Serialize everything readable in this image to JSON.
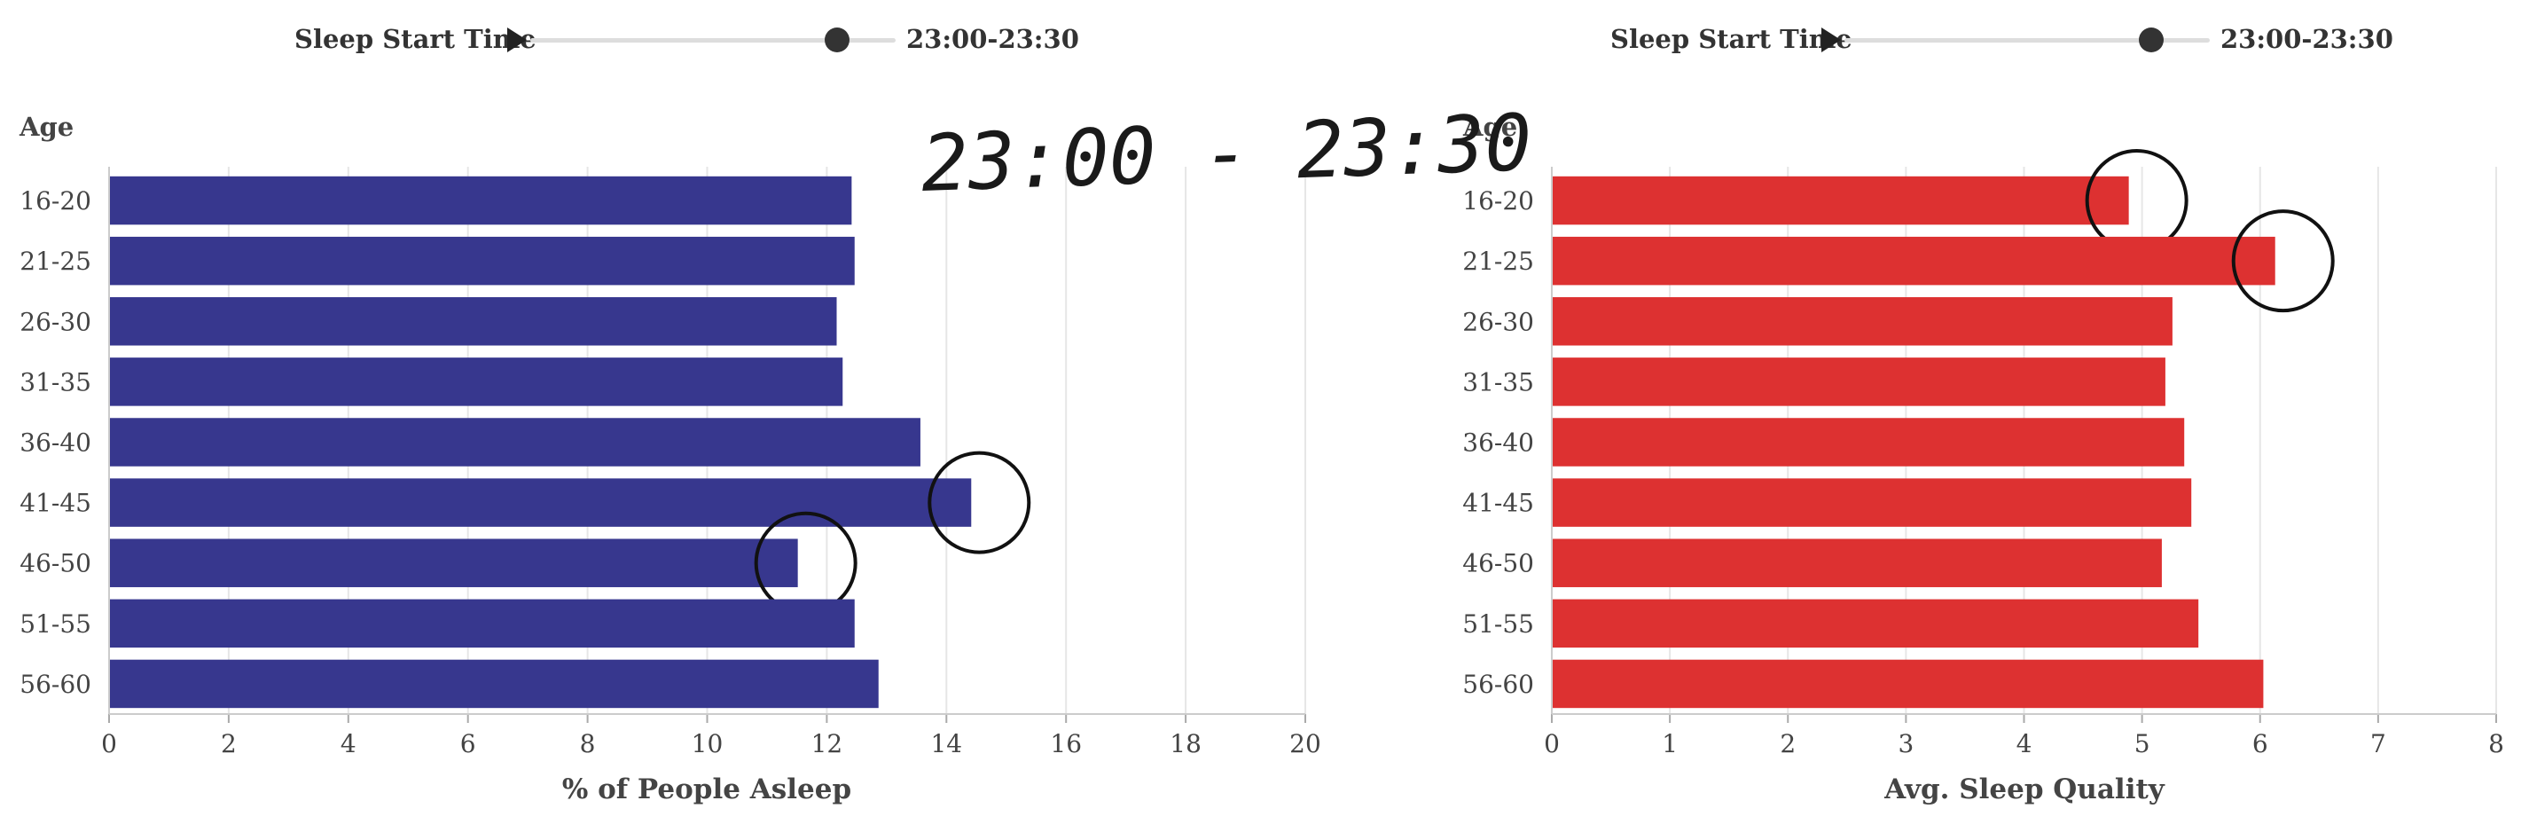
{
  "controls": [
    {
      "label": "Sleep Start Time",
      "value_text": "23:00-23:30",
      "slider_fraction": 0.84
    },
    {
      "label": "Sleep Start Time",
      "value_text": "23:00-23:30",
      "slider_fraction": 0.84
    }
  ],
  "annotation_text": "23:00 - 23:30",
  "chart_data": [
    {
      "type": "bar",
      "orientation": "horizontal",
      "categories": [
        "16-20",
        "21-25",
        "26-30",
        "31-35",
        "36-40",
        "41-45",
        "46-50",
        "51-55",
        "56-60"
      ],
      "values": [
        12.4,
        12.45,
        12.15,
        12.25,
        13.55,
        14.4,
        11.5,
        12.45,
        12.85
      ],
      "xlabel": "% of People Asleep",
      "ylabel": "Age",
      "xlim": [
        0,
        20
      ],
      "xticks": [
        "0",
        "2",
        "4",
        "6",
        "8",
        "10",
        "12",
        "14",
        "16",
        "18",
        "20"
      ],
      "grid": "vertical",
      "color": "#37378e",
      "circled_categories": [
        "41-45",
        "46-50"
      ]
    },
    {
      "type": "bar",
      "orientation": "horizontal",
      "categories": [
        "16-20",
        "21-25",
        "26-30",
        "31-35",
        "36-40",
        "41-45",
        "46-50",
        "51-55",
        "56-60"
      ],
      "values": [
        4.88,
        6.12,
        5.25,
        5.19,
        5.35,
        5.41,
        5.16,
        5.47,
        6.02
      ],
      "xlabel": "Avg. Sleep Quality",
      "ylabel": "Age",
      "xlim": [
        0,
        8
      ],
      "xticks": [
        "0",
        "1",
        "2",
        "3",
        "4",
        "5",
        "6",
        "7",
        "8"
      ],
      "grid": "vertical",
      "color": "#dd3131",
      "circled_categories": [
        "16-20",
        "21-25"
      ]
    }
  ]
}
